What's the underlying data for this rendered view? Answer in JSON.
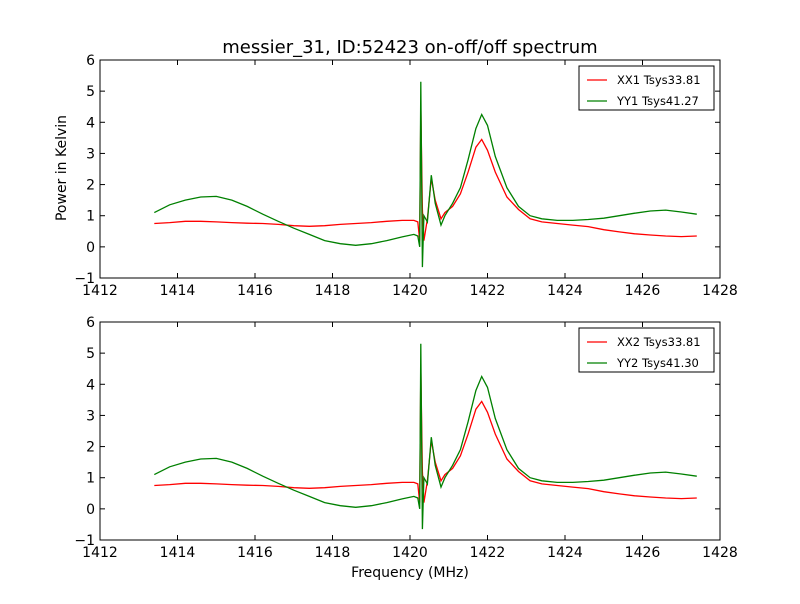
{
  "chart_data": {
    "type": "line",
    "title": "messier_31, ID:52423 on-off/off spectrum",
    "xlabel": "Frequency (MHz)",
    "ylabel": "Power in Kelvin",
    "xlim": [
      1412,
      1428
    ],
    "ylim": [
      -1,
      6
    ],
    "xticks": [
      "1412",
      "1414",
      "1416",
      "1418",
      "1420",
      "1422",
      "1424",
      "1426",
      "1428"
    ],
    "yticks": [
      "−1",
      "0",
      "1",
      "2",
      "3",
      "4",
      "5",
      "6"
    ],
    "legend_position": "top-right",
    "grid": false,
    "subplots": [
      {
        "series": [
          {
            "name": "XX1 Tsys33.81",
            "color": "#ff0000",
            "points": [
              [
                1413.4,
                0.75
              ],
              [
                1413.8,
                0.78
              ],
              [
                1414.2,
                0.82
              ],
              [
                1414.6,
                0.82
              ],
              [
                1415.0,
                0.8
              ],
              [
                1415.4,
                0.78
              ],
              [
                1415.8,
                0.76
              ],
              [
                1416.2,
                0.75
              ],
              [
                1416.6,
                0.72
              ],
              [
                1417.0,
                0.68
              ],
              [
                1417.4,
                0.66
              ],
              [
                1417.8,
                0.68
              ],
              [
                1418.2,
                0.72
              ],
              [
                1418.6,
                0.75
              ],
              [
                1419.0,
                0.78
              ],
              [
                1419.4,
                0.82
              ],
              [
                1419.8,
                0.85
              ],
              [
                1420.1,
                0.85
              ],
              [
                1420.2,
                0.8
              ],
              [
                1420.25,
                0.2
              ],
              [
                1420.28,
                4.5
              ],
              [
                1420.32,
                1.2
              ],
              [
                1420.36,
                0.2
              ],
              [
                1420.45,
                0.9
              ],
              [
                1420.55,
                2.2
              ],
              [
                1420.65,
                1.5
              ],
              [
                1420.8,
                0.9
              ],
              [
                1420.9,
                1.1
              ],
              [
                1421.1,
                1.3
              ],
              [
                1421.3,
                1.7
              ],
              [
                1421.5,
                2.4
              ],
              [
                1421.7,
                3.2
              ],
              [
                1421.85,
                3.45
              ],
              [
                1422.0,
                3.1
              ],
              [
                1422.2,
                2.4
              ],
              [
                1422.5,
                1.6
              ],
              [
                1422.8,
                1.2
              ],
              [
                1423.1,
                0.9
              ],
              [
                1423.4,
                0.8
              ],
              [
                1423.8,
                0.75
              ],
              [
                1424.2,
                0.7
              ],
              [
                1424.6,
                0.65
              ],
              [
                1425.0,
                0.55
              ],
              [
                1425.4,
                0.48
              ],
              [
                1425.8,
                0.42
              ],
              [
                1426.2,
                0.38
              ],
              [
                1426.6,
                0.35
              ],
              [
                1427.0,
                0.33
              ],
              [
                1427.4,
                0.35
              ]
            ]
          },
          {
            "name": "YY1 Tsys41.27",
            "color": "#008000",
            "points": [
              [
                1413.4,
                1.1
              ],
              [
                1413.8,
                1.35
              ],
              [
                1414.2,
                1.5
              ],
              [
                1414.6,
                1.6
              ],
              [
                1415.0,
                1.62
              ],
              [
                1415.4,
                1.5
              ],
              [
                1415.8,
                1.3
              ],
              [
                1416.2,
                1.05
              ],
              [
                1416.6,
                0.82
              ],
              [
                1417.0,
                0.6
              ],
              [
                1417.4,
                0.4
              ],
              [
                1417.8,
                0.2
              ],
              [
                1418.2,
                0.1
              ],
              [
                1418.6,
                0.05
              ],
              [
                1419.0,
                0.1
              ],
              [
                1419.4,
                0.2
              ],
              [
                1419.8,
                0.32
              ],
              [
                1420.1,
                0.4
              ],
              [
                1420.2,
                0.35
              ],
              [
                1420.25,
                0.0
              ],
              [
                1420.28,
                5.3
              ],
              [
                1420.32,
                -0.65
              ],
              [
                1420.36,
                1.0
              ],
              [
                1420.45,
                0.8
              ],
              [
                1420.55,
                2.3
              ],
              [
                1420.65,
                1.4
              ],
              [
                1420.8,
                0.7
              ],
              [
                1420.9,
                1.0
              ],
              [
                1421.1,
                1.4
              ],
              [
                1421.3,
                1.9
              ],
              [
                1421.5,
                2.8
              ],
              [
                1421.7,
                3.8
              ],
              [
                1421.85,
                4.25
              ],
              [
                1422.0,
                3.9
              ],
              [
                1422.2,
                2.9
              ],
              [
                1422.5,
                1.9
              ],
              [
                1422.8,
                1.3
              ],
              [
                1423.1,
                1.0
              ],
              [
                1423.4,
                0.9
              ],
              [
                1423.8,
                0.85
              ],
              [
                1424.2,
                0.85
              ],
              [
                1424.6,
                0.88
              ],
              [
                1425.0,
                0.92
              ],
              [
                1425.4,
                1.0
              ],
              [
                1425.8,
                1.08
              ],
              [
                1426.2,
                1.15
              ],
              [
                1426.6,
                1.18
              ],
              [
                1427.0,
                1.12
              ],
              [
                1427.4,
                1.05
              ]
            ]
          }
        ]
      },
      {
        "series": [
          {
            "name": "XX2 Tsys33.81",
            "color": "#ff0000",
            "points": [
              [
                1413.4,
                0.75
              ],
              [
                1413.8,
                0.78
              ],
              [
                1414.2,
                0.82
              ],
              [
                1414.6,
                0.82
              ],
              [
                1415.0,
                0.8
              ],
              [
                1415.4,
                0.78
              ],
              [
                1415.8,
                0.76
              ],
              [
                1416.2,
                0.75
              ],
              [
                1416.6,
                0.72
              ],
              [
                1417.0,
                0.68
              ],
              [
                1417.4,
                0.66
              ],
              [
                1417.8,
                0.68
              ],
              [
                1418.2,
                0.72
              ],
              [
                1418.6,
                0.75
              ],
              [
                1419.0,
                0.78
              ],
              [
                1419.4,
                0.82
              ],
              [
                1419.8,
                0.85
              ],
              [
                1420.1,
                0.85
              ],
              [
                1420.2,
                0.8
              ],
              [
                1420.25,
                0.2
              ],
              [
                1420.28,
                4.5
              ],
              [
                1420.32,
                1.2
              ],
              [
                1420.36,
                0.2
              ],
              [
                1420.45,
                0.9
              ],
              [
                1420.55,
                2.2
              ],
              [
                1420.65,
                1.5
              ],
              [
                1420.8,
                0.9
              ],
              [
                1420.9,
                1.1
              ],
              [
                1421.1,
                1.3
              ],
              [
                1421.3,
                1.7
              ],
              [
                1421.5,
                2.4
              ],
              [
                1421.7,
                3.2
              ],
              [
                1421.85,
                3.45
              ],
              [
                1422.0,
                3.1
              ],
              [
                1422.2,
                2.4
              ],
              [
                1422.5,
                1.6
              ],
              [
                1422.8,
                1.2
              ],
              [
                1423.1,
                0.9
              ],
              [
                1423.4,
                0.8
              ],
              [
                1423.8,
                0.75
              ],
              [
                1424.2,
                0.7
              ],
              [
                1424.6,
                0.65
              ],
              [
                1425.0,
                0.55
              ],
              [
                1425.4,
                0.48
              ],
              [
                1425.8,
                0.42
              ],
              [
                1426.2,
                0.38
              ],
              [
                1426.6,
                0.35
              ],
              [
                1427.0,
                0.33
              ],
              [
                1427.4,
                0.35
              ]
            ]
          },
          {
            "name": "YY2 Tsys41.30",
            "color": "#008000",
            "points": [
              [
                1413.4,
                1.1
              ],
              [
                1413.8,
                1.35
              ],
              [
                1414.2,
                1.5
              ],
              [
                1414.6,
                1.6
              ],
              [
                1415.0,
                1.62
              ],
              [
                1415.4,
                1.5
              ],
              [
                1415.8,
                1.3
              ],
              [
                1416.2,
                1.05
              ],
              [
                1416.6,
                0.82
              ],
              [
                1417.0,
                0.6
              ],
              [
                1417.4,
                0.4
              ],
              [
                1417.8,
                0.2
              ],
              [
                1418.2,
                0.1
              ],
              [
                1418.6,
                0.05
              ],
              [
                1419.0,
                0.1
              ],
              [
                1419.4,
                0.2
              ],
              [
                1419.8,
                0.32
              ],
              [
                1420.1,
                0.4
              ],
              [
                1420.2,
                0.35
              ],
              [
                1420.25,
                0.0
              ],
              [
                1420.28,
                5.3
              ],
              [
                1420.32,
                -0.65
              ],
              [
                1420.36,
                1.0
              ],
              [
                1420.45,
                0.8
              ],
              [
                1420.55,
                2.3
              ],
              [
                1420.65,
                1.4
              ],
              [
                1420.8,
                0.7
              ],
              [
                1420.9,
                1.0
              ],
              [
                1421.1,
                1.4
              ],
              [
                1421.3,
                1.9
              ],
              [
                1421.5,
                2.8
              ],
              [
                1421.7,
                3.8
              ],
              [
                1421.85,
                4.25
              ],
              [
                1422.0,
                3.9
              ],
              [
                1422.2,
                2.9
              ],
              [
                1422.5,
                1.9
              ],
              [
                1422.8,
                1.3
              ],
              [
                1423.1,
                1.0
              ],
              [
                1423.4,
                0.9
              ],
              [
                1423.8,
                0.85
              ],
              [
                1424.2,
                0.85
              ],
              [
                1424.6,
                0.88
              ],
              [
                1425.0,
                0.92
              ],
              [
                1425.4,
                1.0
              ],
              [
                1425.8,
                1.08
              ],
              [
                1426.2,
                1.15
              ],
              [
                1426.6,
                1.18
              ],
              [
                1427.0,
                1.12
              ],
              [
                1427.4,
                1.05
              ]
            ]
          }
        ]
      }
    ]
  }
}
